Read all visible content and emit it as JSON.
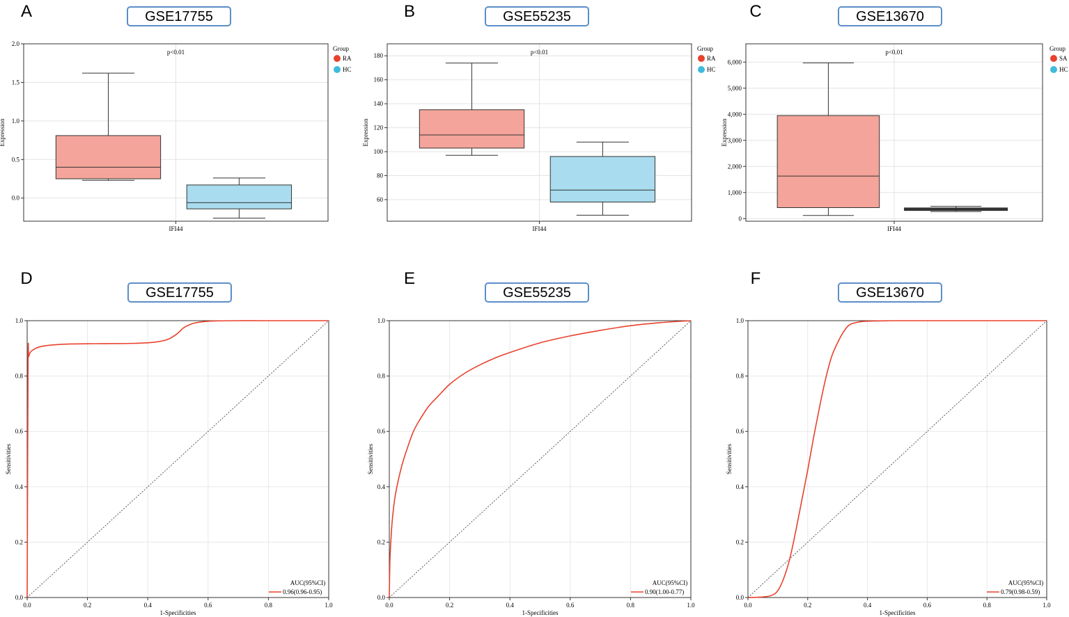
{
  "colors": {
    "case": "#f4a49a",
    "hc": "#a8dcee",
    "case_legend": "#e8412c",
    "hc_legend": "#3fbbdc",
    "roc": "#e8412c",
    "gse_border": "#5b8ec9"
  },
  "chart_data": [
    {
      "id": "A",
      "type": "box",
      "gse": "GSE17755",
      "ylabel": "Expression",
      "xlabel": "IFI44",
      "annotation": "p<0.01",
      "legend": {
        "title": "Group",
        "items": [
          "RA",
          "HC"
        ]
      },
      "ylim": [
        -0.3,
        2.0
      ],
      "yticks": [
        0.0,
        0.5,
        1.0,
        1.5,
        2.0
      ],
      "ytick_labels": [
        "0.0",
        "0.5",
        "1.0",
        "1.5",
        "2.0"
      ],
      "groups": [
        {
          "name": "RA",
          "whisker_low": 0.23,
          "q1": 0.25,
          "median": 0.4,
          "q3": 0.81,
          "whisker_high": 1.62
        },
        {
          "name": "HC",
          "whisker_low": -0.26,
          "q1": -0.14,
          "median": -0.06,
          "q3": 0.17,
          "whisker_high": 0.26
        }
      ]
    },
    {
      "id": "B",
      "type": "box",
      "gse": "GSE55235",
      "ylabel": "Expression",
      "xlabel": "IFI44",
      "annotation": "p<0.01",
      "legend": {
        "title": "Group",
        "items": [
          "RA",
          "HC"
        ]
      },
      "ylim": [
        42,
        190
      ],
      "yticks": [
        60,
        80,
        100,
        120,
        140,
        160,
        180
      ],
      "ytick_labels": [
        "60",
        "80",
        "100",
        "120",
        "140",
        "160",
        "180"
      ],
      "groups": [
        {
          "name": "RA",
          "whisker_low": 97,
          "q1": 103,
          "median": 114,
          "q3": 135,
          "whisker_high": 174
        },
        {
          "name": "HC",
          "whisker_low": 47,
          "q1": 58,
          "median": 68,
          "q3": 96,
          "whisker_high": 108
        }
      ]
    },
    {
      "id": "C",
      "type": "box",
      "gse": "GSE13670",
      "ylabel": "Expression",
      "xlabel": "IFI44",
      "annotation": "p<0.01",
      "legend": {
        "title": "Group",
        "items": [
          "SA",
          "HC"
        ]
      },
      "ylim": [
        -100,
        6700
      ],
      "yticks": [
        0,
        1000,
        2000,
        3000,
        4000,
        5000,
        6000
      ],
      "ytick_labels": [
        "0",
        "1,000",
        "2,000",
        "3,000",
        "4,000",
        "5,000",
        "6,000"
      ],
      "groups": [
        {
          "name": "SA",
          "whisker_low": 120,
          "q1": 420,
          "median": 1630,
          "q3": 3950,
          "whisker_high": 5970
        },
        {
          "name": "HC",
          "whisker_low": 270,
          "q1": 330,
          "median": 360,
          "q3": 390,
          "whisker_high": 470
        }
      ]
    },
    {
      "id": "D",
      "type": "line",
      "gse": "GSE17755",
      "xlabel": "1-Specificities",
      "ylabel": "Sensitivities",
      "xlim": [
        0,
        1
      ],
      "ylim": [
        0,
        1
      ],
      "ticks": [
        0,
        0.2,
        0.4,
        0.6,
        0.8,
        1.0
      ],
      "tick_labels": [
        "0.0",
        "0.2",
        "0.4",
        "0.6",
        "0.8",
        "1.0"
      ],
      "legend": {
        "title": "AUC(95%CI)",
        "label": "0.96(0.96-0.95)"
      },
      "roc": {
        "x": [
          0,
          0.003,
          0.005,
          0.01,
          0.02,
          0.04,
          0.08,
          0.15,
          0.25,
          0.35,
          0.42,
          0.46,
          0.48,
          0.5,
          0.52,
          0.55,
          0.58,
          0.62,
          0.7,
          0.8,
          1.0
        ],
        "y": [
          0,
          0.85,
          0.87,
          0.885,
          0.895,
          0.905,
          0.912,
          0.916,
          0.917,
          0.918,
          0.922,
          0.93,
          0.94,
          0.955,
          0.975,
          0.99,
          0.996,
          0.999,
          1.0,
          1.0,
          1.0
        ]
      }
    },
    {
      "id": "E",
      "type": "line",
      "gse": "GSE55235",
      "xlabel": "1-Specificities",
      "ylabel": "Sensitivities",
      "xlim": [
        0,
        1
      ],
      "ylim": [
        0,
        1
      ],
      "ticks": [
        0,
        0.2,
        0.4,
        0.6,
        0.8,
        1.0
      ],
      "tick_labels": [
        "0.0",
        "0.2",
        "0.4",
        "0.6",
        "0.8",
        "1.0"
      ],
      "legend": {
        "title": "AUC(95%CI)",
        "label": "0.90(1.00-0.77)"
      },
      "roc": {
        "x": [
          0,
          0.002,
          0.005,
          0.01,
          0.02,
          0.04,
          0.06,
          0.08,
          0.1,
          0.13,
          0.16,
          0.2,
          0.25,
          0.3,
          0.35,
          0.4,
          0.5,
          0.6,
          0.7,
          0.8,
          0.9,
          1.0
        ],
        "y": [
          0,
          0.13,
          0.2,
          0.28,
          0.37,
          0.47,
          0.54,
          0.6,
          0.64,
          0.69,
          0.725,
          0.77,
          0.81,
          0.84,
          0.865,
          0.885,
          0.92,
          0.945,
          0.965,
          0.982,
          0.993,
          1.0
        ]
      }
    },
    {
      "id": "F",
      "type": "line",
      "gse": "GSE13670",
      "xlabel": "1-Specificities",
      "ylabel": "Sensitivities",
      "xlim": [
        0,
        1
      ],
      "ylim": [
        0,
        1
      ],
      "ticks": [
        0,
        0.2,
        0.4,
        0.6,
        0.8,
        1.0
      ],
      "tick_labels": [
        "0.0",
        "0.2",
        "0.4",
        "0.6",
        "0.8",
        "1.0"
      ],
      "legend": {
        "title": "AUC(95%CI)",
        "label": "0.79(0.98-0.59)"
      },
      "roc": {
        "x": [
          0,
          0.05,
          0.08,
          0.1,
          0.12,
          0.14,
          0.16,
          0.18,
          0.2,
          0.22,
          0.24,
          0.26,
          0.28,
          0.3,
          0.32,
          0.34,
          0.37,
          0.4,
          0.5,
          0.7,
          1.0
        ],
        "y": [
          0,
          0.002,
          0.008,
          0.025,
          0.07,
          0.14,
          0.24,
          0.35,
          0.46,
          0.58,
          0.69,
          0.79,
          0.87,
          0.92,
          0.96,
          0.985,
          0.995,
          0.998,
          1.0,
          1.0,
          1.0
        ]
      }
    }
  ]
}
